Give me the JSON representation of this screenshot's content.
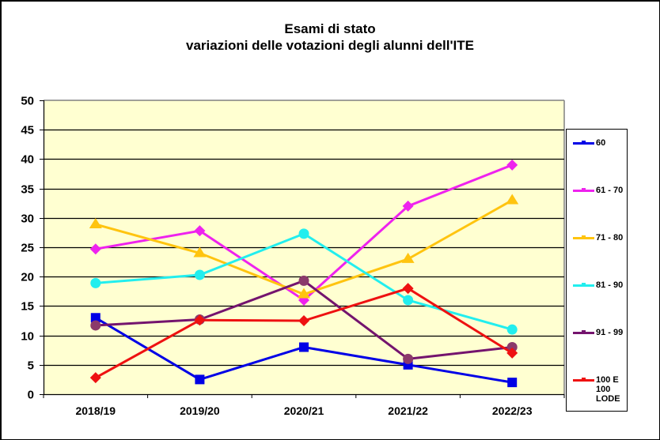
{
  "title": {
    "line1": "Esami di stato",
    "line2": "variazioni delle votazioni degli alunni dell'ITE"
  },
  "colors": {
    "plot_background": "#FFFFD1",
    "gridline": "#000000"
  },
  "legend": {
    "items": [
      {
        "label": "60",
        "color": "#0000E6"
      },
      {
        "label": "61 - 70",
        "color": "#EE22EE"
      },
      {
        "label": "71 - 80",
        "color": "#FFC40F"
      },
      {
        "label": "81 - 90",
        "color": "#22EEEE"
      },
      {
        "label": "91 - 99",
        "color": "#74146E"
      },
      {
        "label": "100 E 100 LODE",
        "color": "#EE1111"
      }
    ]
  },
  "chart_data": {
    "type": "line",
    "title": "Esami di stato\nvariazioni delle votazioni degli alunni dell'ITE",
    "xlabel": "",
    "ylabel": "",
    "categories": [
      "2018/19",
      "2019/20",
      "2020/21",
      "2021/22",
      "2022/23"
    ],
    "ylim": [
      0,
      50
    ],
    "yticks": [
      0,
      5,
      10,
      15,
      20,
      25,
      30,
      35,
      40,
      45,
      50
    ],
    "grid": true,
    "legend_position": "right",
    "series": [
      {
        "name": "60",
        "color": "#0000E6",
        "marker": "square",
        "values": [
          13,
          2.5,
          8,
          5,
          2
        ]
      },
      {
        "name": "61 - 70",
        "color": "#EE22EE",
        "marker": "diamond",
        "values": [
          24.7,
          27.8,
          16,
          32,
          39
        ]
      },
      {
        "name": "71 - 80",
        "color": "#FFC40F",
        "marker": "triangle",
        "values": [
          28.9,
          24,
          17,
          23,
          33
        ]
      },
      {
        "name": "81 - 90",
        "color": "#22EEEE",
        "marker": "circle",
        "values": [
          18.9,
          20.3,
          27.3,
          16,
          11
        ]
      },
      {
        "name": "91 - 99",
        "color": "#74146E",
        "marker": "circle",
        "marker_color": "#8B3A6B",
        "values": [
          11.7,
          12.7,
          19.3,
          6,
          8
        ]
      },
      {
        "name": "100 E 100 LODE",
        "color": "#EE1111",
        "marker": "diamond",
        "values": [
          2.8,
          12.6,
          12.5,
          18,
          7
        ]
      }
    ]
  }
}
